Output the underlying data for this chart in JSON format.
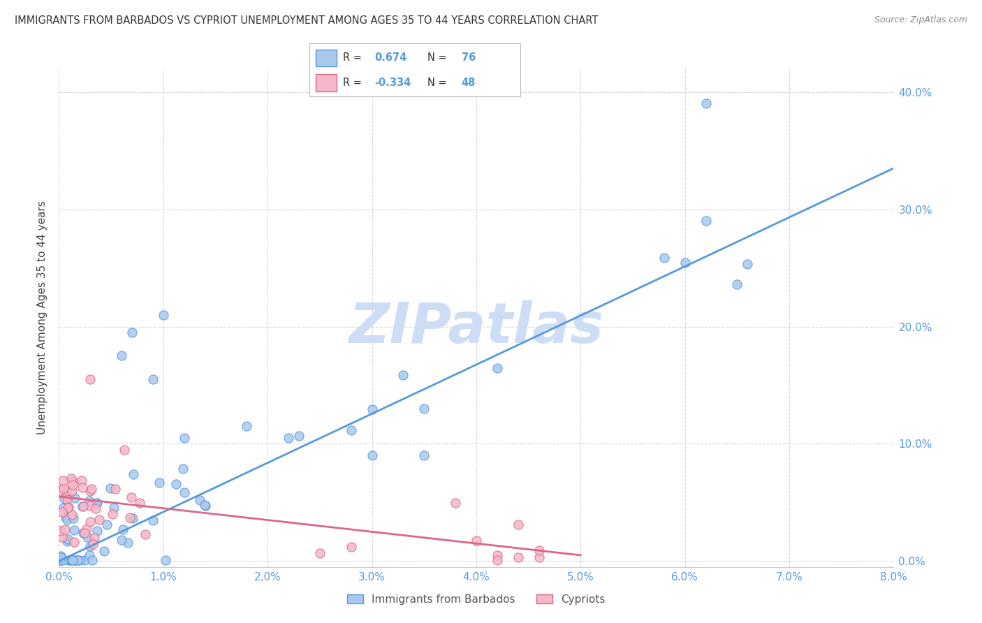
{
  "title": "IMMIGRANTS FROM BARBADOS VS CYPRIOT UNEMPLOYMENT AMONG AGES 35 TO 44 YEARS CORRELATION CHART",
  "source": "Source: ZipAtlas.com",
  "ylabel": "Unemployment Among Ages 35 to 44 years",
  "xlim": [
    0.0,
    0.08
  ],
  "ylim": [
    -0.005,
    0.42
  ],
  "xticks": [
    0.0,
    0.01,
    0.02,
    0.03,
    0.04,
    0.05,
    0.06,
    0.07,
    0.08
  ],
  "yticks": [
    0.0,
    0.1,
    0.2,
    0.3,
    0.4
  ],
  "legend_entries": [
    {
      "label": "Immigrants from Barbados",
      "R": "0.674",
      "N": "76",
      "color": "#aac8ee",
      "line_color": "#5599dd"
    },
    {
      "label": "Cypriots",
      "R": "-0.334",
      "N": "48",
      "color": "#f4b8c8",
      "line_color": "#dd6688"
    }
  ],
  "blue_line": [
    0.0,
    0.0,
    0.08,
    0.335
  ],
  "pink_line": [
    0.0,
    0.055,
    0.05,
    0.005
  ],
  "watermark": "ZIPatlas",
  "watermark_color": "#ccddf5",
  "background_color": "#ffffff",
  "tick_color": "#5599dd",
  "grid_color": "#cccccc",
  "legend_text_color": "#333333",
  "legend_highlight_color": "#5599dd"
}
